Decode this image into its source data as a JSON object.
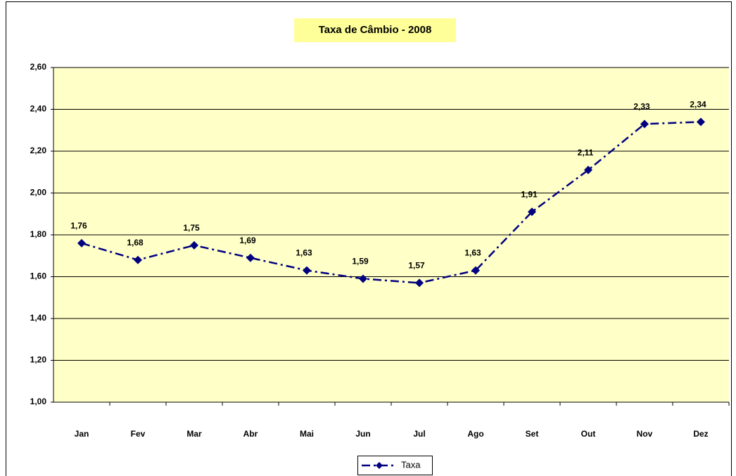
{
  "chart_data": {
    "type": "line",
    "title": "Taxa de Câmbio - 2008",
    "categories": [
      "Jan",
      "Fev",
      "Mar",
      "Abr",
      "Mai",
      "Jun",
      "Jul",
      "Ago",
      "Set",
      "Out",
      "Nov",
      "Dez"
    ],
    "series": [
      {
        "name": "Taxa",
        "color": "#000080",
        "values": [
          1.76,
          1.68,
          1.75,
          1.69,
          1.63,
          1.59,
          1.57,
          1.63,
          1.91,
          2.11,
          2.33,
          2.34
        ],
        "value_labels": [
          "1,76",
          "1,68",
          "1,75",
          "1,69",
          "1,63",
          "1,59",
          "1,57",
          "1,63",
          "1,91",
          "2,11",
          "2,33",
          "2,34"
        ]
      }
    ],
    "ylim": [
      1,
      2.6
    ],
    "yticks": [
      {
        "value": 1,
        "label": "1,00"
      },
      {
        "value": 1.2,
        "label": "1,20"
      },
      {
        "value": 1.4,
        "label": "1,40"
      },
      {
        "value": 1.6,
        "label": "1,60"
      },
      {
        "value": 1.8,
        "label": "1,80"
      },
      {
        "value": 2,
        "label": "2,00"
      },
      {
        "value": 2.2,
        "label": "2,20"
      },
      {
        "value": 2.4,
        "label": "2,40"
      },
      {
        "value": 2.6,
        "label": "2,60"
      }
    ],
    "grid": true,
    "legend": "bottom"
  }
}
